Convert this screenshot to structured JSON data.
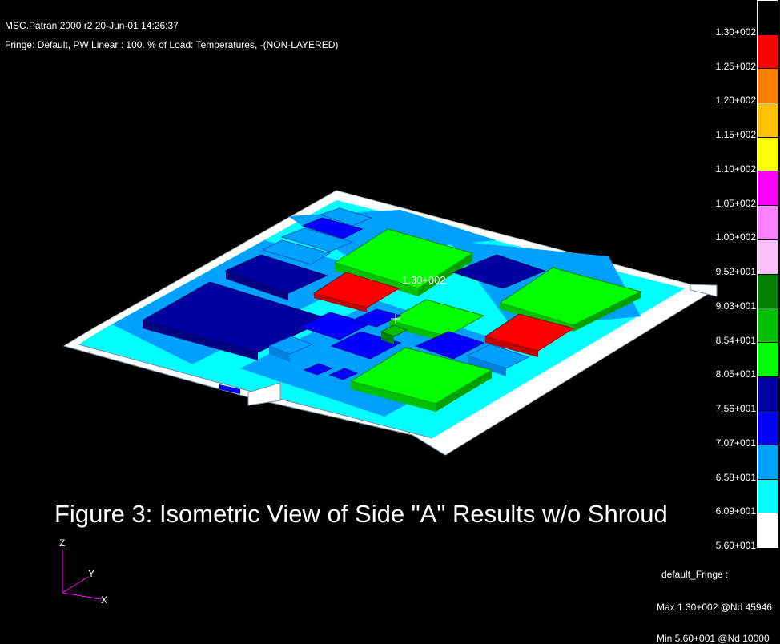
{
  "header": {
    "line1": "MSC.Patran 2000 r2 20-Jun-01 14:26:37",
    "line2": "Fringe: Default, PW Linear : 100. % of Load: Temperatures, -(NON-LAYERED)"
  },
  "viewport": {
    "max_marker_label": "1.30+002"
  },
  "caption": "Figure 3: Isometric View of Side \"A\" Results w/o Shroud",
  "colorbar": {
    "swatch_colors": [
      "#000000",
      "#ff0000",
      "#ff8000",
      "#ffc000",
      "#ffff00",
      "#ff00ff",
      "#ff80ff",
      "#ffc0ff",
      "#008000",
      "#00c000",
      "#00ff00",
      "#0000a0",
      "#0000ff",
      "#00a0ff",
      "#00ffff",
      "#ffffff"
    ],
    "tick_labels": [
      "1.30+002",
      "1.25+002",
      "1.20+002",
      "1.15+002",
      "1.10+002",
      "1.05+002",
      "1.00+002",
      "9.52+001",
      "9.03+001",
      "8.54+001",
      "8.05+001",
      "7.56+001",
      "7.07+001",
      "6.58+001",
      "6.09+001",
      "5.60+001"
    ]
  },
  "fringe_info": {
    "name": "default_Fringe :",
    "max": "Max 1.30+002 @Nd 45946",
    "min": "Min 5.60+001 @Nd 10000"
  },
  "triad": {
    "z": "Z",
    "y": "Y",
    "x": "X"
  }
}
